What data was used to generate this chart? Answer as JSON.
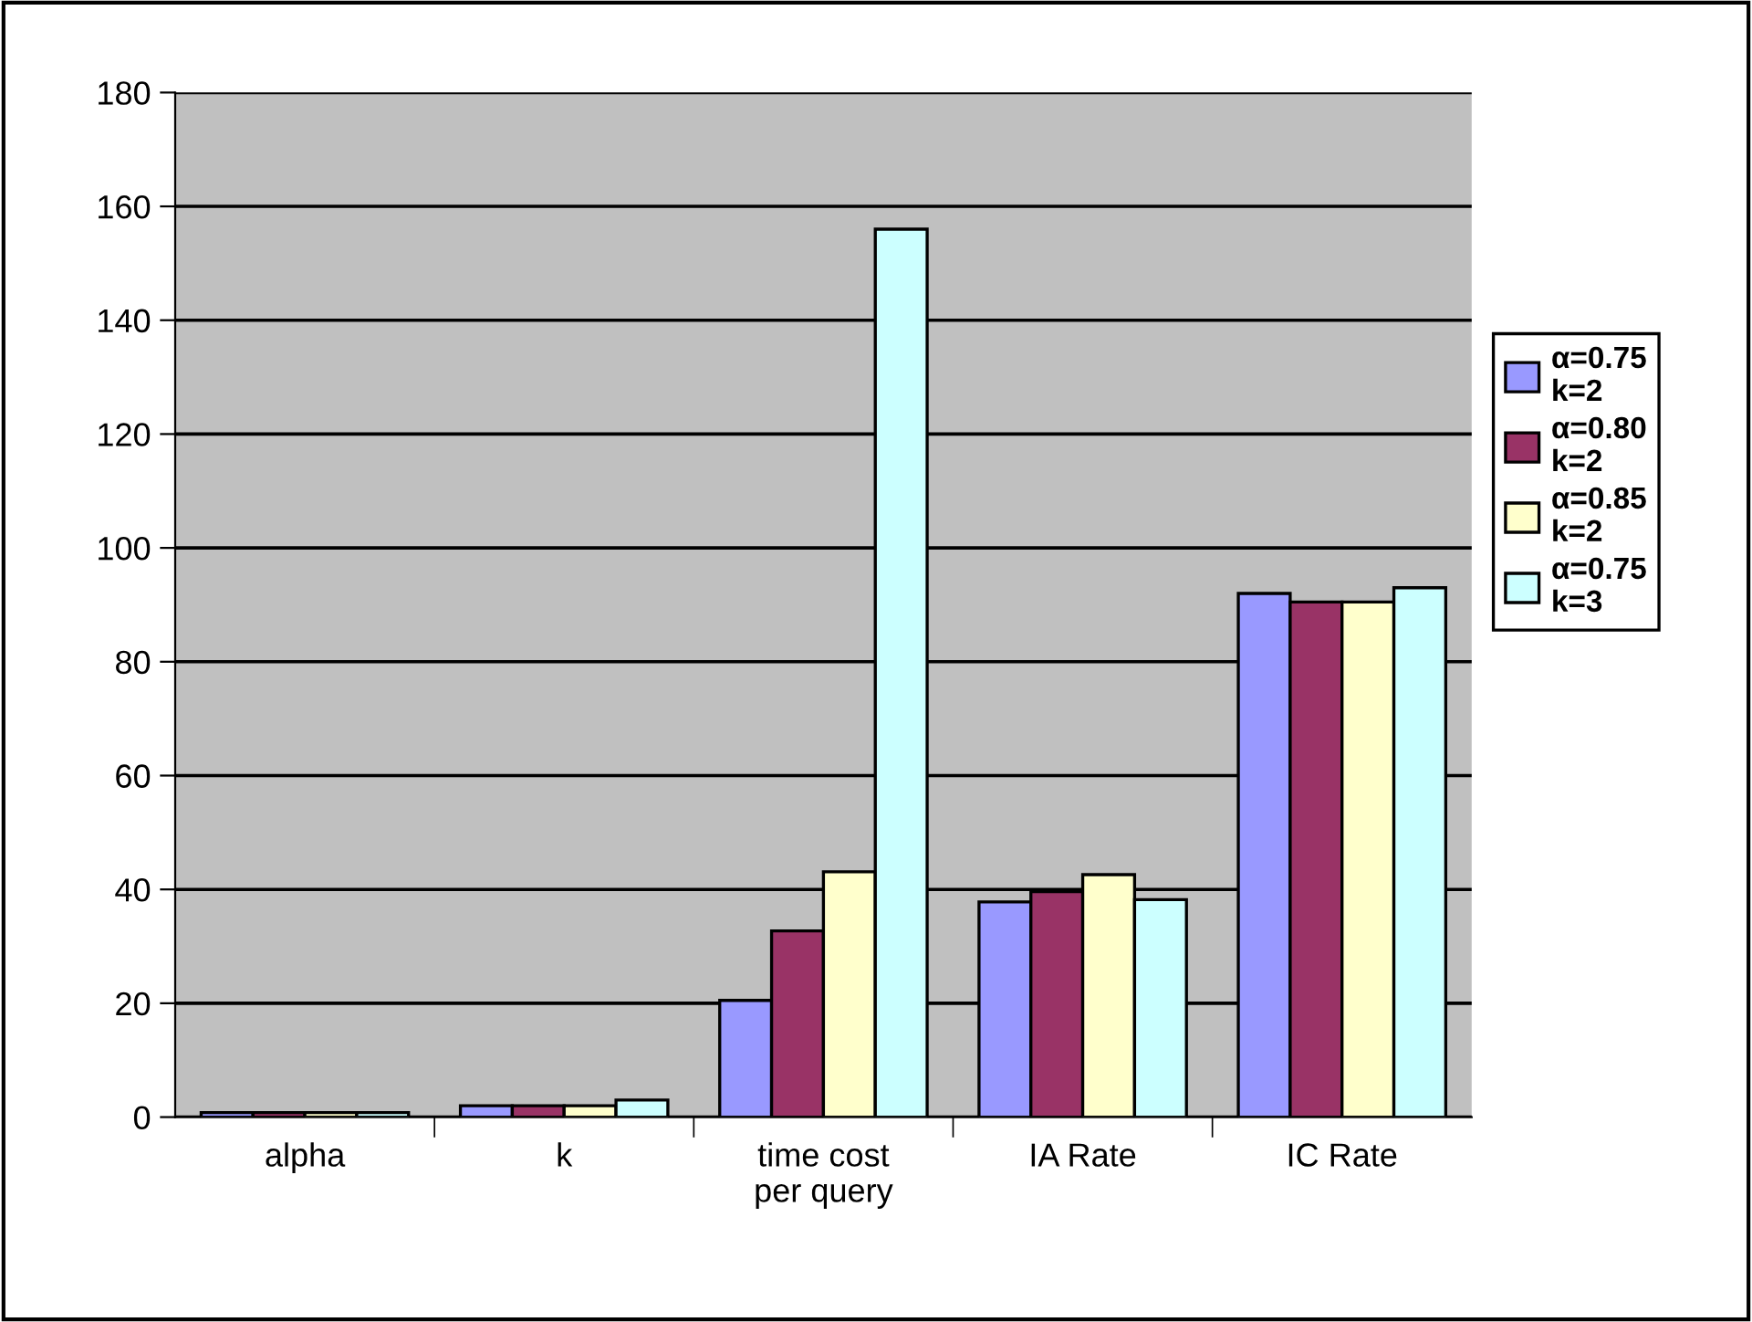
{
  "chart_data": {
    "type": "bar",
    "categories": [
      "alpha",
      "k",
      "time cost\nper query",
      "IA Rate",
      "IC Rate"
    ],
    "series": [
      {
        "name": "α=0.75\nk=2",
        "color": "#9999ff",
        "values": [
          0.8,
          2,
          20.5,
          37.8,
          92
        ]
      },
      {
        "name": "α=0.80\nk=2",
        "color": "#993366",
        "values": [
          0.8,
          2,
          32.7,
          39.6,
          90.5
        ]
      },
      {
        "name": "α=0.85\nk=2",
        "color": "#ffffcc",
        "values": [
          0.8,
          2,
          43.1,
          42.6,
          90.5
        ]
      },
      {
        "name": "α=0.75\nk=3",
        "color": "#ccffff",
        "values": [
          0.8,
          3,
          156,
          38.2,
          93
        ]
      }
    ],
    "ylim": [
      0,
      180
    ],
    "yticks": [
      0,
      20,
      40,
      60,
      80,
      100,
      120,
      140,
      160,
      180
    ],
    "grid": "y",
    "legend": "right"
  }
}
